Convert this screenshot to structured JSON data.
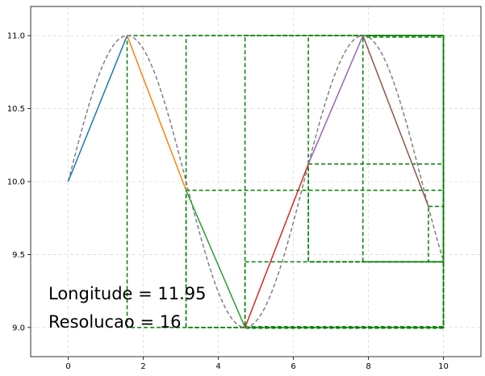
{
  "chart_data": {
    "type": "line",
    "title": "",
    "xlabel": "",
    "ylabel": "",
    "xlim": [
      -1.0,
      11.0
    ],
    "ylim": [
      8.8,
      11.2
    ],
    "x_ticks": [
      0,
      2,
      4,
      6,
      8,
      10
    ],
    "y_ticks": [
      9.0,
      9.5,
      10.0,
      10.5,
      11.0
    ],
    "x_tick_labels": [
      "0",
      "2",
      "4",
      "6",
      "8",
      "10"
    ],
    "y_tick_labels": [
      "9.0",
      "9.5",
      "10.0",
      "10.5",
      "11.0"
    ],
    "grid": true,
    "reference_curve": {
      "function": "10 + sin(x)",
      "x_range": [
        0,
        10
      ],
      "color": "#808080",
      "style": "dashed"
    },
    "segments": [
      {
        "x": [
          0.0,
          1.5708
        ],
        "y": [
          10.0,
          11.0
        ],
        "color": "#1f77b4"
      },
      {
        "x": [
          1.5708,
          3.1416
        ],
        "y": [
          11.0,
          9.94
        ],
        "color": "#ff7f0e"
      },
      {
        "x": [
          3.1416,
          4.7124
        ],
        "y": [
          9.94,
          9.0
        ],
        "color": "#2ca02c"
      },
      {
        "x": [
          4.7124,
          6.4
        ],
        "y": [
          9.0,
          10.12
        ],
        "color": "#d62728"
      },
      {
        "x": [
          6.4,
          7.854
        ],
        "y": [
          10.12,
          11.0
        ],
        "color": "#9467bd"
      },
      {
        "x": [
          7.854,
          9.6
        ],
        "y": [
          11.0,
          9.83
        ],
        "color": "#8c564b"
      }
    ],
    "boxes": {
      "color": "#008000",
      "rects": [
        [
          1.5708,
          9.0,
          10.0,
          11.0
        ],
        [
          3.1416,
          9.0,
          10.0,
          11.0
        ],
        [
          4.7124,
          9.0,
          10.0,
          11.0
        ],
        [
          6.4,
          9.45,
          10.0,
          11.0
        ],
        [
          7.854,
          9.45,
          10.0,
          11.0
        ],
        [
          3.1416,
          9.0,
          10.0,
          9.94
        ],
        [
          4.7124,
          9.0,
          10.0,
          9.45
        ],
        [
          6.4,
          9.45,
          10.0,
          10.12
        ],
        [
          9.6,
          9.45,
          10.0,
          9.83
        ],
        [
          7.854,
          10.99,
          10.0,
          11.0
        ],
        [
          4.7124,
          8.995,
          10.0,
          9.005
        ]
      ]
    },
    "annotations": [
      {
        "text": "Longitude = 11.95",
        "x": -0.5,
        "y": 9.2
      },
      {
        "text": "Resolucao = 16",
        "x": -0.5,
        "y": 9.02
      }
    ]
  }
}
